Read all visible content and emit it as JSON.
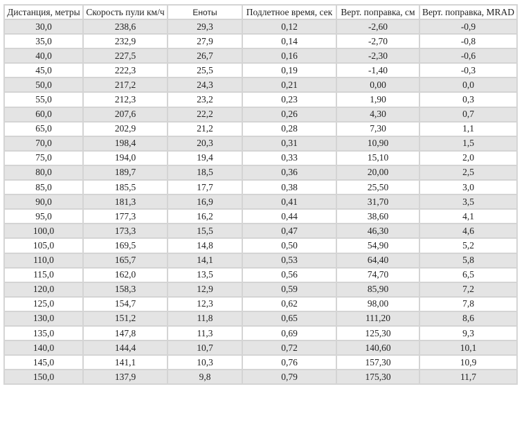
{
  "headers": [
    "Дистанция, метры",
    "Скорость пули км/ч",
    "Еноты",
    "Подлетное время, сек",
    "Верт. поправка, см",
    "Верт. поправка, MRAD"
  ],
  "rows": [
    [
      "30,0",
      "238,6",
      "29,3",
      "0,12",
      "-2,60",
      "-0,9"
    ],
    [
      "35,0",
      "232,9",
      "27,9",
      "0,14",
      "-2,70",
      "-0,8"
    ],
    [
      "40,0",
      "227,5",
      "26,7",
      "0,16",
      "-2,30",
      "-0,6"
    ],
    [
      "45,0",
      "222,3",
      "25,5",
      "0,19",
      "-1,40",
      "-0,3"
    ],
    [
      "50,0",
      "217,2",
      "24,3",
      "0,21",
      "0,00",
      "0,0"
    ],
    [
      "55,0",
      "212,3",
      "23,2",
      "0,23",
      "1,90",
      "0,3"
    ],
    [
      "60,0",
      "207,6",
      "22,2",
      "0,26",
      "4,30",
      "0,7"
    ],
    [
      "65,0",
      "202,9",
      "21,2",
      "0,28",
      "7,30",
      "1,1"
    ],
    [
      "70,0",
      "198,4",
      "20,3",
      "0,31",
      "10,90",
      "1,5"
    ],
    [
      "75,0",
      "194,0",
      "19,4",
      "0,33",
      "15,10",
      "2,0"
    ],
    [
      "80,0",
      "189,7",
      "18,5",
      "0,36",
      "20,00",
      "2,5"
    ],
    [
      "85,0",
      "185,5",
      "17,7",
      "0,38",
      "25,50",
      "3,0"
    ],
    [
      "90,0",
      "181,3",
      "16,9",
      "0,41",
      "31,70",
      "3,5"
    ],
    [
      "95,0",
      "177,3",
      "16,2",
      "0,44",
      "38,60",
      "4,1"
    ],
    [
      "100,0",
      "173,3",
      "15,5",
      "0,47",
      "46,30",
      "4,6"
    ],
    [
      "105,0",
      "169,5",
      "14,8",
      "0,50",
      "54,90",
      "5,2"
    ],
    [
      "110,0",
      "165,7",
      "14,1",
      "0,53",
      "64,40",
      "5,8"
    ],
    [
      "115,0",
      "162,0",
      "13,5",
      "0,56",
      "74,70",
      "6,5"
    ],
    [
      "120,0",
      "158,3",
      "12,9",
      "0,59",
      "85,90",
      "7,2"
    ],
    [
      "125,0",
      "154,7",
      "12,3",
      "0,62",
      "98,00",
      "7,8"
    ],
    [
      "130,0",
      "151,2",
      "11,8",
      "0,65",
      "111,20",
      "8,6"
    ],
    [
      "135,0",
      "147,8",
      "11,3",
      "0,69",
      "125,30",
      "9,3"
    ],
    [
      "140,0",
      "144,4",
      "10,7",
      "0,72",
      "140,60",
      "10,1"
    ],
    [
      "145,0",
      "141,1",
      "10,3",
      "0,76",
      "157,30",
      "10,9"
    ],
    [
      "150,0",
      "137,9",
      "9,8",
      "0,79",
      "175,30",
      "11,7"
    ]
  ],
  "colors": {
    "stripe": "#e4e4e4",
    "border": "#d4d4d4"
  }
}
